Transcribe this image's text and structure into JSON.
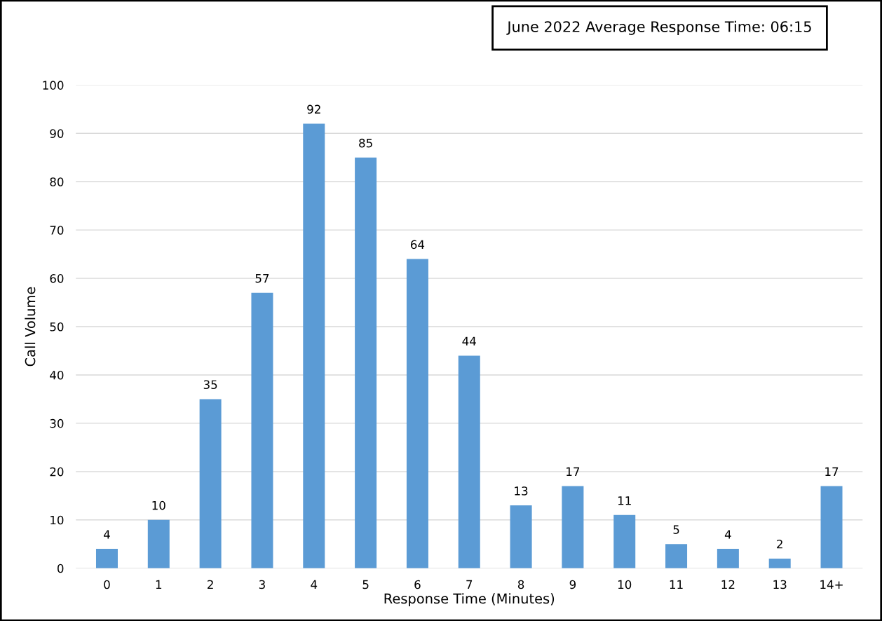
{
  "chart_data": {
    "type": "bar",
    "title": "June 2022 Average Response Time: 06:15",
    "xlabel": "Response Time (Minutes)",
    "ylabel": "Call Volume",
    "categories": [
      "0",
      "1",
      "2",
      "3",
      "4",
      "5",
      "6",
      "7",
      "8",
      "9",
      "10",
      "11",
      "12",
      "13",
      "14+"
    ],
    "values": [
      4,
      10,
      35,
      57,
      92,
      85,
      64,
      44,
      13,
      17,
      11,
      5,
      4,
      2,
      17
    ],
    "color": "#5b9bd5",
    "ylim": [
      0,
      100
    ],
    "yticks": [
      0,
      10,
      20,
      30,
      40,
      50,
      60,
      70,
      80,
      90,
      100
    ],
    "grid": "y",
    "data_labels": true
  }
}
